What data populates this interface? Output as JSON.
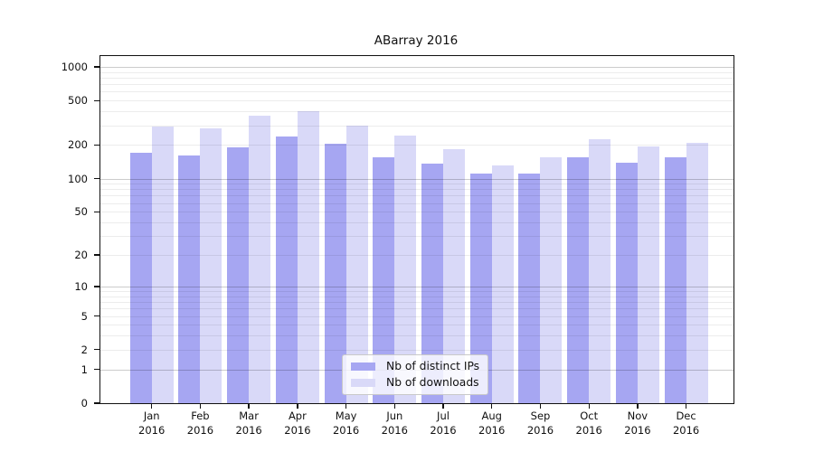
{
  "chart_data": {
    "type": "bar",
    "title": "ABarray 2016",
    "x_sub_label": "2016",
    "categories": [
      "Jan",
      "Feb",
      "Mar",
      "Apr",
      "May",
      "Jun",
      "Jul",
      "Aug",
      "Sep",
      "Oct",
      "Nov",
      "Dec"
    ],
    "series": [
      {
        "name": "Nb of distinct IPs",
        "color": "#a6a6f2",
        "values": [
          170,
          160,
          190,
          240,
          205,
          155,
          135,
          110,
          110,
          155,
          140,
          155
        ]
      },
      {
        "name": "Nb of downloads",
        "color": "#d9d9f8",
        "values": [
          290,
          280,
          365,
          405,
          300,
          245,
          185,
          130,
          155,
          225,
          195,
          210
        ]
      }
    ],
    "y_ticks": [
      1000,
      500,
      200,
      100,
      50,
      20,
      10,
      5,
      2,
      1,
      0
    ],
    "yscale": "log1p",
    "ylim": [
      0,
      1100
    ],
    "grid": {
      "orientation": "horizontal",
      "minor_color": "#ececec",
      "major_color": "#cdcdcd",
      "major_at": [
        1,
        10,
        100,
        1000
      ]
    },
    "legend_position": "inside-bottom-center",
    "axis_color": "#111111",
    "background_color": "#ffffff"
  }
}
